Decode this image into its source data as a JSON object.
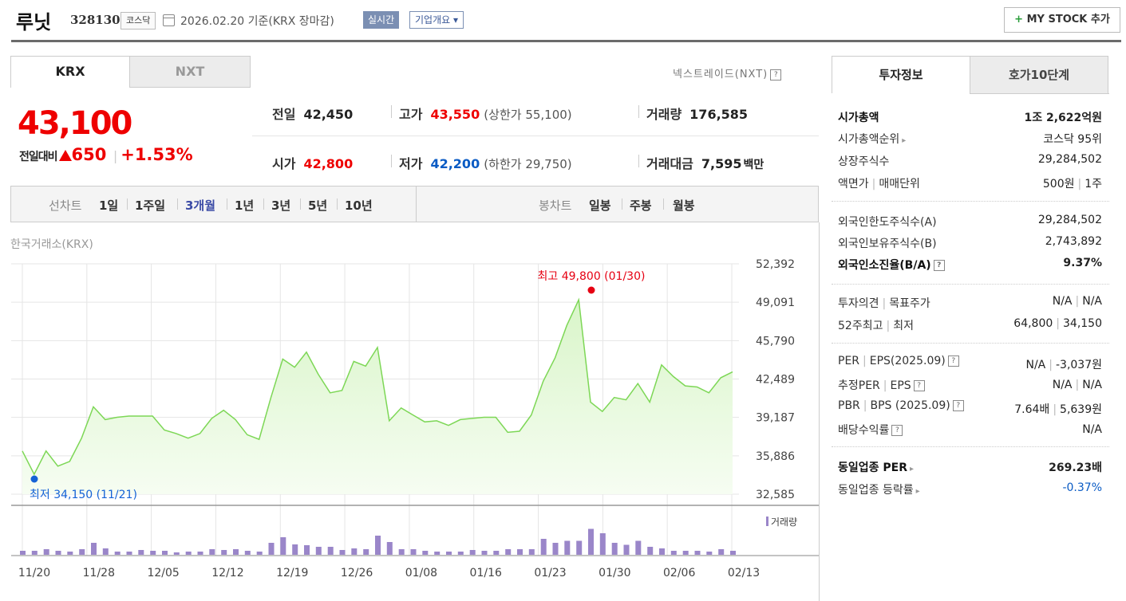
{
  "header": {
    "company_name": "루닛",
    "code": "328130",
    "market": "코스닥",
    "date_text": "2026.02.20  기준(KRX 장마감)",
    "realtime_label": "실시간",
    "overview_label": "기업개요 ▾",
    "mystock_label": "MY STOCK 추가",
    "mystock_icon": "+"
  },
  "tabs": {
    "krx": "KRX",
    "nxt": "NXT"
  },
  "nextrade_link": "넥스트레이드(NXT)",
  "help_glyph": "?",
  "price": {
    "current": "43,100",
    "change_label": "전일대비",
    "change_value": "650",
    "change_pct": "+1.53%",
    "direction": "up"
  },
  "stats": {
    "prev_close_label": "전일",
    "prev_close": "42,450",
    "high_label": "고가",
    "high": "43,550",
    "upper_limit": "(상한가 55,100)",
    "volume_label": "거래량",
    "volume": "176,585",
    "open_label": "시가",
    "open": "42,800",
    "low_label": "저가",
    "low": "42,200",
    "lower_limit": "(하한가 29,750)",
    "amount_label": "거래대금",
    "amount": "7,595",
    "amount_unit": "백만"
  },
  "toolbar": {
    "line_label": "선차트",
    "line_periods": [
      "1일",
      "1주일",
      "3개월",
      "1년",
      "3년",
      "5년",
      "10년"
    ],
    "active_period": "3개월",
    "candle_label": "봉차트",
    "candle_periods": [
      "일봉",
      "주봉",
      "월봉"
    ]
  },
  "exchange_label": "한국거래소(KRX)",
  "chart_data": {
    "type": "area",
    "y_ticks": [
      52392,
      49091,
      45790,
      42489,
      39187,
      35886,
      32585
    ],
    "y_tick_labels": [
      "52,392",
      "49,091",
      "45,790",
      "42,489",
      "39,187",
      "35,886",
      "32,585"
    ],
    "ylim": [
      32585,
      52392
    ],
    "x_tick_labels": [
      "11/20",
      "11/28",
      "12/05",
      "12/12",
      "12/19",
      "12/26",
      "01/08",
      "01/16",
      "01/23",
      "01/30",
      "02/06",
      "02/13"
    ],
    "prices": [
      36300,
      34300,
      36300,
      35000,
      35400,
      37400,
      40100,
      39000,
      39200,
      39300,
      39300,
      39300,
      38100,
      37800,
      37400,
      37800,
      39100,
      39800,
      39000,
      37700,
      37300,
      40900,
      44200,
      43500,
      44800,
      42900,
      41300,
      41500,
      44000,
      43600,
      45200,
      38900,
      40000,
      39400,
      38800,
      38900,
      38500,
      39000,
      39100,
      39200,
      39200,
      37900,
      38000,
      39400,
      42300,
      44300,
      47100,
      49300,
      40500,
      39700,
      40900,
      40700,
      42100,
      40500,
      43700,
      42700,
      41900,
      41800,
      41300,
      42600,
      43100
    ],
    "series": [
      {
        "name": "거래량",
        "values": [
          0.1,
          0.1,
          0.14,
          0.1,
          0.08,
          0.14,
          0.3,
          0.16,
          0.08,
          0.08,
          0.12,
          0.1,
          0.1,
          0.06,
          0.08,
          0.08,
          0.14,
          0.12,
          0.14,
          0.1,
          0.08,
          0.3,
          0.44,
          0.26,
          0.24,
          0.2,
          0.2,
          0.12,
          0.16,
          0.14,
          0.48,
          0.32,
          0.14,
          0.14,
          0.1,
          0.08,
          0.08,
          0.08,
          0.12,
          0.1,
          0.1,
          0.14,
          0.14,
          0.14,
          0.4,
          0.3,
          0.35,
          0.35,
          0.65,
          0.54,
          0.3,
          0.25,
          0.35,
          0.2,
          0.16,
          0.1,
          0.1,
          0.1,
          0.08,
          0.14,
          0.1
        ]
      }
    ],
    "high_annotation": "최고 49,800 (01/30)",
    "low_annotation": "최저 34,150 (11/21)",
    "high_color": "#e60012",
    "low_color": "#1562d6",
    "line_color": "#7dd756",
    "fill_color": "#d9f5c9",
    "volume_color": "#9a86c9",
    "volume_legend": "거래량"
  },
  "right_panel": {
    "tab_info": "투자정보",
    "tab_orderbook": "호가10단계",
    "rows": [
      {
        "label": "시가총액",
        "value": "1조 2,622억원"
      },
      {
        "label": "시가총액순위",
        "value": "코스닥 95위"
      },
      {
        "label": "상장주식수",
        "value": "29,284,502"
      },
      {
        "label": "액면가",
        "label2": "매매단위",
        "value": "500원",
        "value2": "1주"
      },
      {
        "label": "외국인한도주식수(A)",
        "value": "29,284,502"
      },
      {
        "label": "외국인보유주식수(B)",
        "value": "2,743,892"
      },
      {
        "label": "외국인소진율(B/A)",
        "value": "9.37%"
      },
      {
        "label": "투자의견",
        "label2": "목표주가",
        "value": "N/A",
        "value2": "N/A"
      },
      {
        "label": "52주최고",
        "label2": "최저",
        "value": "64,800",
        "value2": "34,150"
      },
      {
        "label": "PER",
        "label2": "EPS(2025.09)",
        "value": "N/A",
        "value2": "-3,037원"
      },
      {
        "label": "추정PER",
        "label2": "EPS",
        "value": "N/A",
        "value2": "N/A"
      },
      {
        "label": "PBR",
        "label2": "BPS (2025.09)",
        "value": "7.64배",
        "value2": "5,639원"
      },
      {
        "label": "배당수익률",
        "value": "N/A"
      },
      {
        "label": "동일업종 PER",
        "value": "269.23배"
      },
      {
        "label": "동일업종 등락률",
        "value": "-0.37%"
      }
    ]
  }
}
